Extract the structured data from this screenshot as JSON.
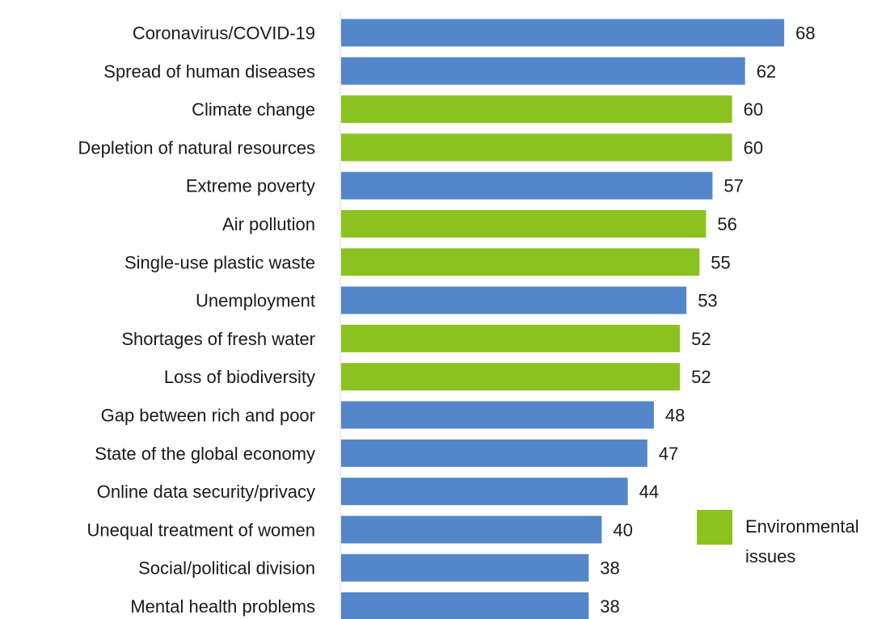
{
  "chart_data": {
    "type": "bar",
    "orientation": "horizontal",
    "categories": [
      "Coronavirus/COVID-19",
      "Spread of human diseases",
      "Climate change",
      "Depletion of natural resources",
      "Extreme poverty",
      "Air pollution",
      "Single-use plastic waste",
      "Unemployment",
      "Shortages of fresh water",
      "Loss of biodiversity",
      "Gap between rich and poor",
      "State of the global economy",
      "Online data security/privacy",
      "Unequal treatment of women",
      "Social/political division",
      "Mental health problems"
    ],
    "values": [
      68,
      62,
      60,
      60,
      57,
      56,
      55,
      53,
      52,
      52,
      48,
      47,
      44,
      40,
      38,
      38
    ],
    "environmental": [
      false,
      false,
      true,
      true,
      false,
      true,
      true,
      false,
      true,
      true,
      false,
      false,
      false,
      false,
      false,
      false
    ],
    "colors": {
      "default": "#5487c9",
      "environmental": "#8cc21f"
    },
    "legend": {
      "line1": "Environmental",
      "line2": "issues",
      "color": "#8cc21f",
      "placement": "bottom-right"
    },
    "xlim": [
      0,
      70
    ],
    "grid": false
  }
}
